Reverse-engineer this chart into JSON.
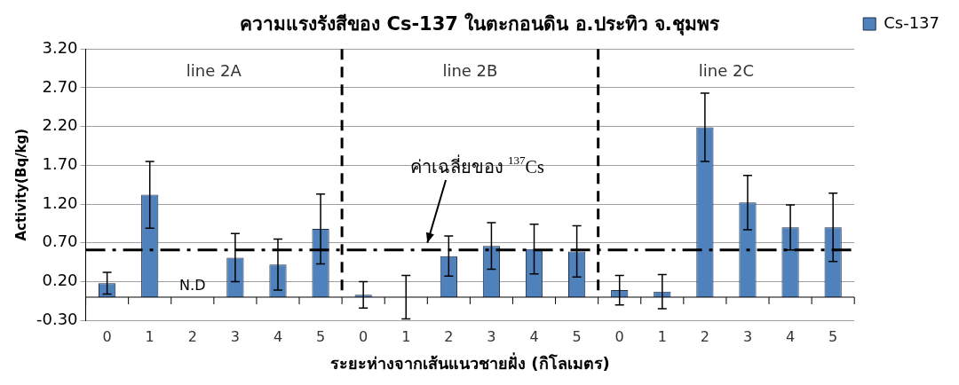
{
  "chart_data": {
    "type": "bar",
    "title": "ความแรงรังสีของ Cs-137 ในตะกอนดิน อ.ประทิว จ.ชุมพร",
    "xlabel": "ระยะห่างจากเส้นแนวชายฝั่ง (กิโลเมตร)",
    "ylabel": "Activity(Bq/kg)",
    "categories": [
      "0",
      "1",
      "2",
      "3",
      "4",
      "5",
      "0",
      "1",
      "2",
      "3",
      "4",
      "5",
      "0",
      "1",
      "2",
      "3",
      "4",
      "5"
    ],
    "series": [
      {
        "name": "Cs-137",
        "color": "#4f81bd",
        "values": [
          0.18,
          1.32,
          0,
          0.51,
          0.42,
          0.88,
          0.03,
          0,
          0.53,
          0.66,
          0.62,
          0.59,
          0.09,
          0.07,
          2.19,
          1.22,
          0.9,
          0.9
        ],
        "errors": [
          0.14,
          0.43,
          null,
          0.31,
          0.33,
          0.45,
          0.17,
          0.28,
          0.26,
          0.3,
          0.32,
          0.33,
          0.19,
          0.22,
          0.44,
          0.35,
          0.29,
          0.44
        ],
        "value_labels": [
          null,
          null,
          "N.D",
          null,
          null,
          null,
          null,
          null,
          null,
          null,
          null,
          null,
          null,
          null,
          null,
          null,
          null,
          null
        ]
      }
    ],
    "ylim": [
      -0.3,
      3.2
    ],
    "yticks": [
      {
        "value": -0.3,
        "label": "-0.30"
      },
      {
        "value": 0.2,
        "label": "0.20"
      },
      {
        "value": 0.7,
        "label": "0.70"
      },
      {
        "value": 1.2,
        "label": "1.20"
      },
      {
        "value": 1.7,
        "label": "1.70"
      },
      {
        "value": 2.2,
        "label": "2.20"
      },
      {
        "value": 2.7,
        "label": "2.70"
      },
      {
        "value": 3.2,
        "label": "3.20"
      }
    ],
    "ref_lines": [
      {
        "axis": "y",
        "value": 0.61,
        "label": "ค่าเฉลี่ยของ $^{137}$Cs",
        "line_style": "dashed",
        "color": "#000000"
      }
    ],
    "annotations": [
      "line 2A",
      "line 2B",
      "line 2C"
    ],
    "grid": "y",
    "legend": "top right"
  }
}
